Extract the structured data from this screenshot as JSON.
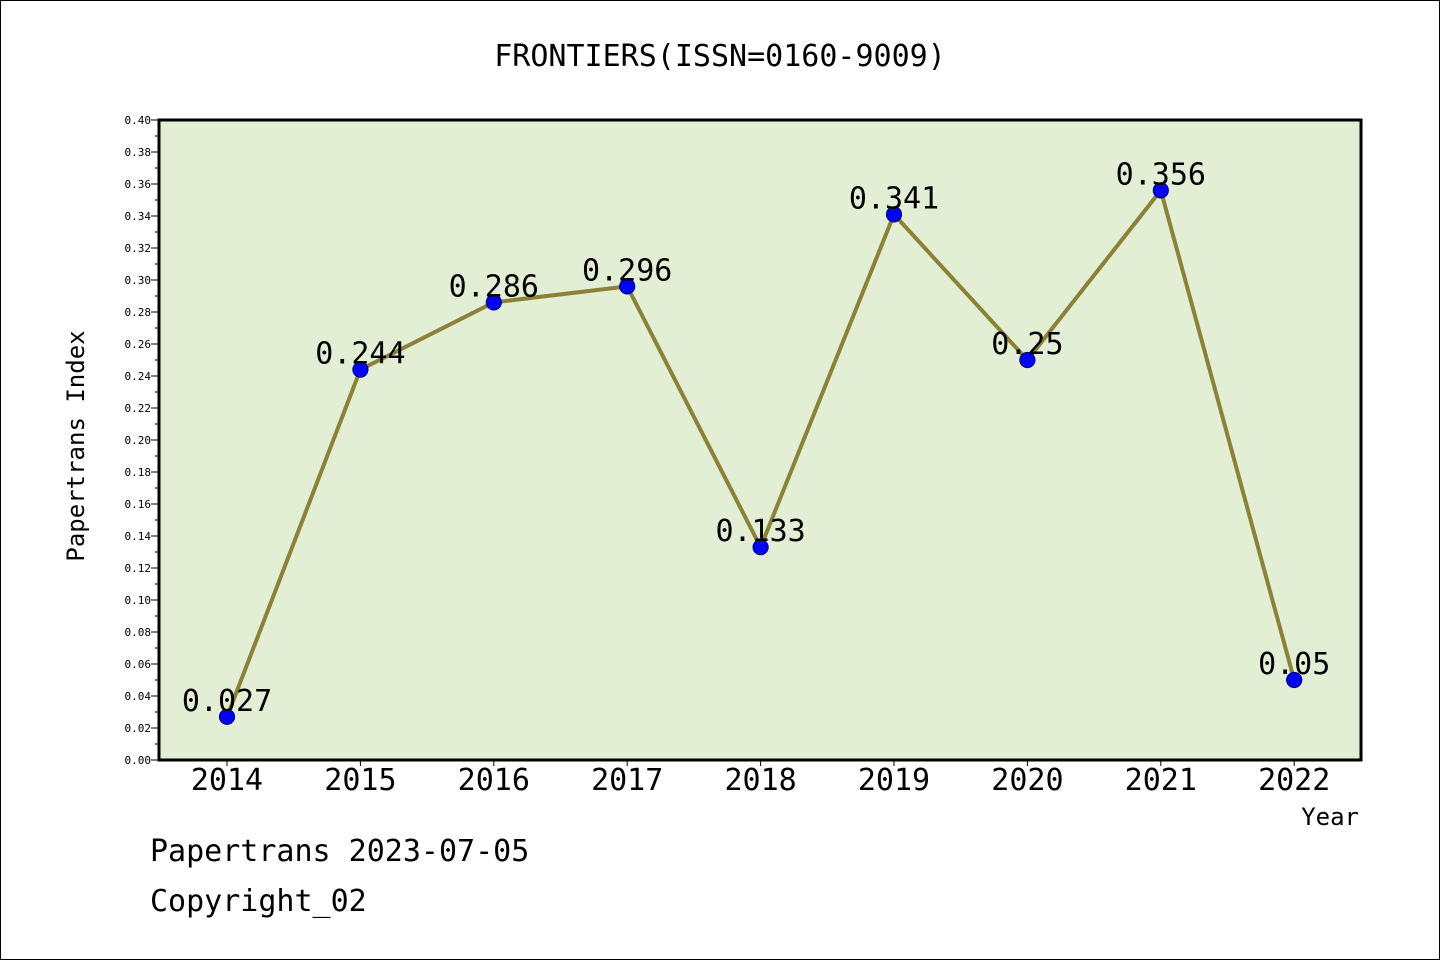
{
  "chart_data": {
    "type": "line",
    "title": "FRONTIERS(ISSN=0160-9009)",
    "xlabel": "Year",
    "ylabel": "Papertrans Index",
    "categories": [
      "2014",
      "2015",
      "2016",
      "2017",
      "2018",
      "2019",
      "2020",
      "2021",
      "2022"
    ],
    "values": [
      0.027,
      0.244,
      0.286,
      0.296,
      0.133,
      0.341,
      0.25,
      0.356,
      0.05
    ],
    "data_labels": [
      "0.027",
      "0.244",
      "0.286",
      "0.296",
      "0.133",
      "0.341",
      "0.25",
      "0.356",
      "0.05"
    ],
    "ylim": [
      0,
      0.4
    ],
    "y_ticks": [
      "0.00",
      "0.02",
      "0.04",
      "0.06",
      "0.08",
      "0.10",
      "0.12",
      "0.14",
      "0.16",
      "0.18",
      "0.20",
      "0.22",
      "0.24",
      "0.26",
      "0.28",
      "0.30",
      "0.32",
      "0.34",
      "0.36",
      "0.38",
      "0.40"
    ],
    "grid": false,
    "colors": {
      "plot_background": "#e2efd5",
      "line": "#8b8236",
      "marker": "#0000ff",
      "marker_edge": "#000080"
    }
  },
  "footer": {
    "line1": "Papertrans 2023-07-05",
    "line2": "Copyright_02"
  }
}
